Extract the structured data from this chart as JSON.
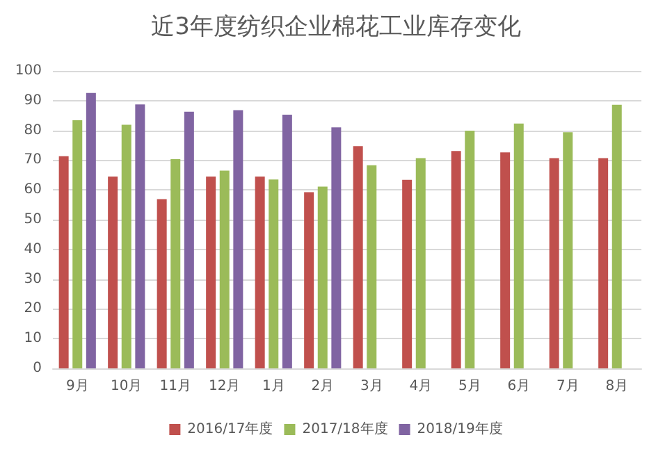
{
  "chart_data": {
    "type": "bar",
    "title": "近3年度纺织企业棉花工业库存变化",
    "categories": [
      "9月",
      "10月",
      "11月",
      "12月",
      "1月",
      "2月",
      "3月",
      "4月",
      "5月",
      "6月",
      "7月",
      "8月"
    ],
    "series": [
      {
        "name": "2016/17年度",
        "color": "#c0504d",
        "values": [
          71.3,
          64.5,
          56.9,
          64.5,
          64.5,
          59.2,
          74.7,
          63.4,
          73.1,
          72.6,
          70.7,
          70.7
        ]
      },
      {
        "name": "2017/18年度",
        "color": "#9bbb59",
        "values": [
          83.4,
          81.9,
          70.3,
          66.5,
          63.5,
          61.1,
          68.3,
          70.7,
          79.9,
          82.3,
          79.4,
          88.6
        ]
      },
      {
        "name": "2018/19年度",
        "color": "#8064a2",
        "values": [
          92.6,
          88.7,
          86.3,
          86.8,
          85.3,
          81,
          null,
          null,
          null,
          null,
          null,
          null
        ]
      }
    ],
    "ylim": [
      0,
      100
    ],
    "yticks": [
      0,
      10,
      20,
      30,
      40,
      50,
      60,
      70,
      80,
      90,
      100
    ],
    "grid": "y",
    "legend": "bottom"
  }
}
